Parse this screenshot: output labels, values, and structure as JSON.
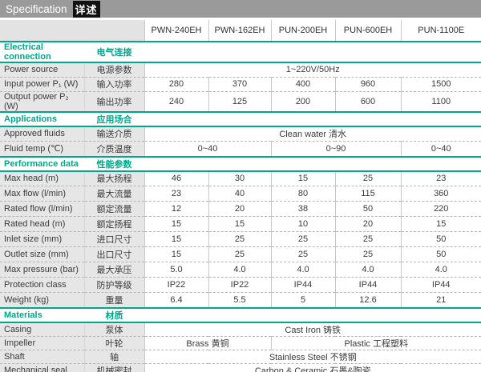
{
  "title": {
    "en": "Specification",
    "cn": "详述"
  },
  "colors": {
    "accent": "#00A78C",
    "title_bar_bg": "#9A9A9A",
    "title_chip_bg": "#111111",
    "label_bg": "#E6E6E6"
  },
  "columns": [
    "PWN-240EH",
    "PWN-162EH",
    "PUN-200EH",
    "PUN-600EH",
    "PUN-1100E"
  ],
  "sections": [
    {
      "id": "electrical-connection",
      "en": "Electrical connection",
      "cn": "电气连接",
      "rows": [
        {
          "en": "Power source",
          "cn": "电源参数",
          "cells": [
            {
              "span": 5,
              "v": "1~220V/50Hz"
            }
          ]
        },
        {
          "en": "Input power P₁ (W)",
          "cn": "输入功率",
          "cells": [
            {
              "span": 1,
              "v": "280"
            },
            {
              "span": 1,
              "v": "370"
            },
            {
              "span": 1,
              "v": "400"
            },
            {
              "span": 1,
              "v": "960"
            },
            {
              "span": 1,
              "v": "1500"
            }
          ]
        },
        {
          "en": "Output power P₂ (W)",
          "cn": "输出功率",
          "cells": [
            {
              "span": 1,
              "v": "240"
            },
            {
              "span": 1,
              "v": "125"
            },
            {
              "span": 1,
              "v": "200"
            },
            {
              "span": 1,
              "v": "600"
            },
            {
              "span": 1,
              "v": "1100"
            }
          ]
        }
      ]
    },
    {
      "id": "applications",
      "en": "Applications",
      "cn": "应用场合",
      "rows": [
        {
          "en": "Approved fluids",
          "cn": "输送介质",
          "cells": [
            {
              "span": 5,
              "v": "Clean water 清水"
            }
          ]
        },
        {
          "en": "Fluid temp (℃)",
          "cn": "介质温度",
          "cells": [
            {
              "span": 2,
              "v": "0~40"
            },
            {
              "span": 2,
              "v": "0~90"
            },
            {
              "span": 1,
              "v": "0~40"
            }
          ]
        }
      ]
    },
    {
      "id": "performance-data",
      "en": "Performance data",
      "cn": "性能参数",
      "rows": [
        {
          "en": "Max head (m)",
          "cn": "最大扬程",
          "cells": [
            {
              "span": 1,
              "v": "46"
            },
            {
              "span": 1,
              "v": "30"
            },
            {
              "span": 1,
              "v": "15"
            },
            {
              "span": 1,
              "v": "25"
            },
            {
              "span": 1,
              "v": "23"
            }
          ]
        },
        {
          "en": "Max flow (l/min)",
          "cn": "最大流量",
          "cells": [
            {
              "span": 1,
              "v": "23"
            },
            {
              "span": 1,
              "v": "40"
            },
            {
              "span": 1,
              "v": "80"
            },
            {
              "span": 1,
              "v": "115"
            },
            {
              "span": 1,
              "v": "360"
            }
          ]
        },
        {
          "en": "Rated flow (l/min)",
          "cn": "额定流量",
          "cells": [
            {
              "span": 1,
              "v": "12"
            },
            {
              "span": 1,
              "v": "20"
            },
            {
              "span": 1,
              "v": "38"
            },
            {
              "span": 1,
              "v": "50"
            },
            {
              "span": 1,
              "v": "220"
            }
          ]
        },
        {
          "en": "Rated head (m)",
          "cn": "额定扬程",
          "cells": [
            {
              "span": 1,
              "v": "15"
            },
            {
              "span": 1,
              "v": "15"
            },
            {
              "span": 1,
              "v": "10"
            },
            {
              "span": 1,
              "v": "20"
            },
            {
              "span": 1,
              "v": "15"
            }
          ]
        },
        {
          "en": "Inlet size (mm)",
          "cn": "进口尺寸",
          "cells": [
            {
              "span": 1,
              "v": "15"
            },
            {
              "span": 1,
              "v": "25"
            },
            {
              "span": 1,
              "v": "25"
            },
            {
              "span": 1,
              "v": "25"
            },
            {
              "span": 1,
              "v": "50"
            }
          ]
        },
        {
          "en": "Outlet size (mm)",
          "cn": "出口尺寸",
          "cells": [
            {
              "span": 1,
              "v": "15"
            },
            {
              "span": 1,
              "v": "25"
            },
            {
              "span": 1,
              "v": "25"
            },
            {
              "span": 1,
              "v": "25"
            },
            {
              "span": 1,
              "v": "50"
            }
          ]
        },
        {
          "en": "Max pressure (bar)",
          "cn": "最大承压",
          "cells": [
            {
              "span": 1,
              "v": "5.0"
            },
            {
              "span": 1,
              "v": "4.0"
            },
            {
              "span": 1,
              "v": "4.0"
            },
            {
              "span": 1,
              "v": "4.0"
            },
            {
              "span": 1,
              "v": "4.0"
            }
          ]
        },
        {
          "en": "Protection class",
          "cn": "防护等级",
          "cells": [
            {
              "span": 1,
              "v": "IP22"
            },
            {
              "span": 1,
              "v": "IP22"
            },
            {
              "span": 1,
              "v": "IP44"
            },
            {
              "span": 1,
              "v": "IP44"
            },
            {
              "span": 1,
              "v": "IP44"
            }
          ]
        },
        {
          "en": "Weight (kg)",
          "cn": "重量",
          "cells": [
            {
              "span": 1,
              "v": "6.4"
            },
            {
              "span": 1,
              "v": "5.5"
            },
            {
              "span": 1,
              "v": "5"
            },
            {
              "span": 1,
              "v": "12.6"
            },
            {
              "span": 1,
              "v": "21"
            }
          ]
        }
      ]
    },
    {
      "id": "materials",
      "en": "Materials",
      "cn": "材质",
      "rows": [
        {
          "en": "Casing",
          "cn": "泵体",
          "cells": [
            {
              "span": 5,
              "v": "Cast Iron 铸铁"
            }
          ]
        },
        {
          "en": "Impeller",
          "cn": "叶轮",
          "cells": [
            {
              "span": 2,
              "v": "Brass 黄铜"
            },
            {
              "span": 3,
              "v": "Plastic 工程塑料"
            }
          ]
        },
        {
          "en": "Shaft",
          "cn": "轴",
          "cells": [
            {
              "span": 5,
              "v": "Stainless Steel 不锈钢"
            }
          ]
        },
        {
          "en": "Mechanical seal",
          "cn": "机械密封",
          "cells": [
            {
              "span": 5,
              "v": "Carbon & Ceramic 石墨&陶瓷"
            }
          ]
        }
      ]
    }
  ]
}
